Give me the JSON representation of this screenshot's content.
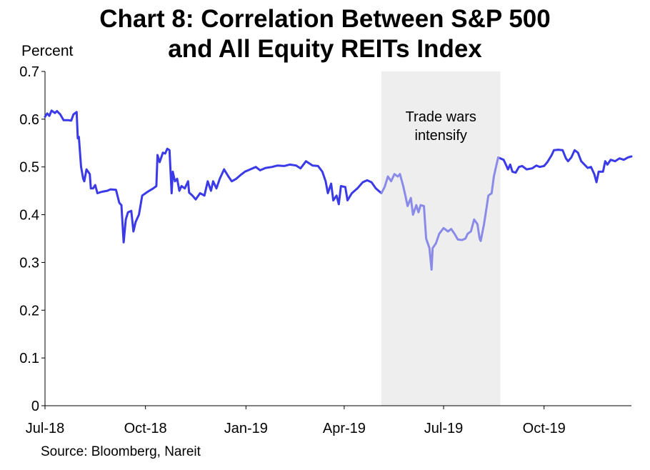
{
  "title_line1": "Chart 8: Correlation Between S&P 500",
  "title_line2": "and All Equity REITs Index",
  "source": "Source: Bloomberg, Nareit",
  "chart_data": {
    "type": "line",
    "title": "Chart 8: Correlation Between S&P 500 and All Equity REITs Index",
    "ylabel": "Percent",
    "xlabel": "",
    "ylim": [
      0,
      0.7
    ],
    "yticks": [
      "0",
      "0.1",
      "0.2",
      "0.3",
      "0.4",
      "0.5",
      "0.6",
      "0.7"
    ],
    "xticks": [
      {
        "label": "Jul-18",
        "date": "2018-07-01"
      },
      {
        "label": "Oct-18",
        "date": "2018-10-01"
      },
      {
        "label": "Jan-19",
        "date": "2019-01-01"
      },
      {
        "label": "Apr-19",
        "date": "2019-04-01"
      },
      {
        "label": "Jul-19",
        "date": "2019-07-01"
      },
      {
        "label": "Oct-19",
        "date": "2019-10-01"
      }
    ],
    "xlim": [
      "2018-07-01",
      "2019-12-20"
    ],
    "shaded_region": {
      "start": "2019-05-05",
      "end": "2019-08-22",
      "color": "#eeeeee"
    },
    "annotation": {
      "lines": [
        "Trade wars",
        "intensify"
      ]
    },
    "grid": false,
    "colors": {
      "line": "#3a3ae8",
      "line_highlight": "#8a8ae8"
    },
    "series": [
      {
        "name": "",
        "points": [
          [
            "2018-07-01",
            0.605
          ],
          [
            "2018-07-03",
            0.612
          ],
          [
            "2018-07-05",
            0.607
          ],
          [
            "2018-07-07",
            0.618
          ],
          [
            "2018-07-10",
            0.613
          ],
          [
            "2018-07-12",
            0.617
          ],
          [
            "2018-07-15",
            0.61
          ],
          [
            "2018-07-18",
            0.598
          ],
          [
            "2018-07-22",
            0.598
          ],
          [
            "2018-07-25",
            0.597
          ],
          [
            "2018-07-27",
            0.61
          ],
          [
            "2018-07-30",
            0.615
          ],
          [
            "2018-07-31",
            0.56
          ],
          [
            "2018-08-01",
            0.563
          ],
          [
            "2018-08-03",
            0.5
          ],
          [
            "2018-08-05",
            0.475
          ],
          [
            "2018-08-06",
            0.47
          ],
          [
            "2018-08-08",
            0.495
          ],
          [
            "2018-08-11",
            0.485
          ],
          [
            "2018-08-12",
            0.455
          ],
          [
            "2018-08-14",
            0.455
          ],
          [
            "2018-08-16",
            0.462
          ],
          [
            "2018-08-18",
            0.445
          ],
          [
            "2018-08-22",
            0.448
          ],
          [
            "2018-08-27",
            0.45
          ],
          [
            "2018-08-30",
            0.453
          ],
          [
            "2018-09-04",
            0.452
          ],
          [
            "2018-09-07",
            0.425
          ],
          [
            "2018-09-09",
            0.42
          ],
          [
            "2018-09-11",
            0.342
          ],
          [
            "2018-09-13",
            0.39
          ],
          [
            "2018-09-15",
            0.405
          ],
          [
            "2018-09-18",
            0.408
          ],
          [
            "2018-09-20",
            0.365
          ],
          [
            "2018-09-22",
            0.385
          ],
          [
            "2018-09-25",
            0.4
          ],
          [
            "2018-09-28",
            0.44
          ],
          [
            "2018-10-03",
            0.448
          ],
          [
            "2018-10-08",
            0.455
          ],
          [
            "2018-10-11",
            0.46
          ],
          [
            "2018-10-12",
            0.525
          ],
          [
            "2018-10-14",
            0.51
          ],
          [
            "2018-10-17",
            0.53
          ],
          [
            "2018-10-19",
            0.528
          ],
          [
            "2018-10-21",
            0.538
          ],
          [
            "2018-10-23",
            0.535
          ],
          [
            "2018-10-25",
            0.445
          ],
          [
            "2018-10-26",
            0.49
          ],
          [
            "2018-10-28",
            0.47
          ],
          [
            "2018-10-30",
            0.475
          ],
          [
            "2018-11-01",
            0.45
          ],
          [
            "2018-11-03",
            0.46
          ],
          [
            "2018-11-06",
            0.455
          ],
          [
            "2018-11-09",
            0.47
          ],
          [
            "2018-11-10",
            0.446
          ],
          [
            "2018-11-13",
            0.44
          ],
          [
            "2018-11-16",
            0.432
          ],
          [
            "2018-11-20",
            0.445
          ],
          [
            "2018-11-24",
            0.44
          ],
          [
            "2018-11-27",
            0.47
          ],
          [
            "2018-11-30",
            0.45
          ],
          [
            "2018-12-02",
            0.47
          ],
          [
            "2018-12-05",
            0.455
          ],
          [
            "2018-12-08",
            0.475
          ],
          [
            "2018-12-12",
            0.495
          ],
          [
            "2018-12-16",
            0.48
          ],
          [
            "2018-12-19",
            0.47
          ],
          [
            "2018-12-23",
            0.475
          ],
          [
            "2018-12-27",
            0.483
          ],
          [
            "2018-12-31",
            0.49
          ],
          [
            "2019-01-05",
            0.495
          ],
          [
            "2019-01-10",
            0.5
          ],
          [
            "2019-01-14",
            0.493
          ],
          [
            "2019-01-19",
            0.498
          ],
          [
            "2019-01-25",
            0.5
          ],
          [
            "2019-01-30",
            0.503
          ],
          [
            "2019-02-05",
            0.502
          ],
          [
            "2019-02-10",
            0.505
          ],
          [
            "2019-02-16",
            0.503
          ],
          [
            "2019-02-20",
            0.497
          ],
          [
            "2019-02-25",
            0.512
          ],
          [
            "2019-03-03",
            0.503
          ],
          [
            "2019-03-08",
            0.502
          ],
          [
            "2019-03-12",
            0.49
          ],
          [
            "2019-03-15",
            0.47
          ],
          [
            "2019-03-17",
            0.445
          ],
          [
            "2019-03-20",
            0.465
          ],
          [
            "2019-03-22",
            0.43
          ],
          [
            "2019-03-25",
            0.44
          ],
          [
            "2019-03-27",
            0.422
          ],
          [
            "2019-03-29",
            0.46
          ],
          [
            "2019-04-02",
            0.458
          ],
          [
            "2019-04-04",
            0.43
          ],
          [
            "2019-04-08",
            0.445
          ],
          [
            "2019-04-13",
            0.455
          ],
          [
            "2019-04-18",
            0.468
          ],
          [
            "2019-04-22",
            0.472
          ],
          [
            "2019-04-26",
            0.468
          ],
          [
            "2019-04-30",
            0.455
          ],
          [
            "2019-05-05",
            0.445
          ]
        ]
      },
      {
        "name": "",
        "segment": "shaded",
        "points": [
          [
            "2019-05-05",
            0.445
          ],
          [
            "2019-05-08",
            0.458
          ],
          [
            "2019-05-11",
            0.48
          ],
          [
            "2019-05-14",
            0.47
          ],
          [
            "2019-05-17",
            0.485
          ],
          [
            "2019-05-20",
            0.48
          ],
          [
            "2019-05-22",
            0.485
          ],
          [
            "2019-05-25",
            0.46
          ],
          [
            "2019-05-27",
            0.44
          ],
          [
            "2019-05-29",
            0.418
          ],
          [
            "2019-06-01",
            0.435
          ],
          [
            "2019-06-03",
            0.4
          ],
          [
            "2019-06-06",
            0.42
          ],
          [
            "2019-06-08",
            0.405
          ],
          [
            "2019-06-10",
            0.42
          ],
          [
            "2019-06-13",
            0.418
          ],
          [
            "2019-06-15",
            0.35
          ],
          [
            "2019-06-18",
            0.33
          ],
          [
            "2019-06-20",
            0.285
          ],
          [
            "2019-06-21",
            0.33
          ],
          [
            "2019-06-24",
            0.34
          ],
          [
            "2019-06-27",
            0.36
          ],
          [
            "2019-07-01",
            0.372
          ],
          [
            "2019-07-05",
            0.365
          ],
          [
            "2019-07-08",
            0.37
          ],
          [
            "2019-07-11",
            0.36
          ],
          [
            "2019-07-14",
            0.348
          ],
          [
            "2019-07-18",
            0.347
          ],
          [
            "2019-07-21",
            0.35
          ],
          [
            "2019-07-23",
            0.36
          ],
          [
            "2019-07-26",
            0.365
          ],
          [
            "2019-07-29",
            0.39
          ],
          [
            "2019-08-01",
            0.38
          ],
          [
            "2019-08-03",
            0.35
          ],
          [
            "2019-08-04",
            0.345
          ],
          [
            "2019-08-07",
            0.38
          ],
          [
            "2019-08-09",
            0.41
          ],
          [
            "2019-08-11",
            0.44
          ],
          [
            "2019-08-14",
            0.445
          ],
          [
            "2019-08-16",
            0.48
          ],
          [
            "2019-08-18",
            0.5
          ],
          [
            "2019-08-20",
            0.52
          ],
          [
            "2019-08-22",
            0.518
          ]
        ]
      },
      {
        "name": "",
        "points": [
          [
            "2019-08-22",
            0.518
          ],
          [
            "2019-08-25",
            0.515
          ],
          [
            "2019-08-27",
            0.505
          ],
          [
            "2019-08-29",
            0.495
          ],
          [
            "2019-08-31",
            0.505
          ],
          [
            "2019-09-02",
            0.49
          ],
          [
            "2019-09-05",
            0.488
          ],
          [
            "2019-09-08",
            0.5
          ],
          [
            "2019-09-11",
            0.502
          ],
          [
            "2019-09-15",
            0.495
          ],
          [
            "2019-09-20",
            0.497
          ],
          [
            "2019-09-24",
            0.503
          ],
          [
            "2019-09-27",
            0.5
          ],
          [
            "2019-10-01",
            0.502
          ],
          [
            "2019-10-04",
            0.51
          ],
          [
            "2019-10-08",
            0.525
          ],
          [
            "2019-10-10",
            0.535
          ],
          [
            "2019-10-14",
            0.536
          ],
          [
            "2019-10-18",
            0.535
          ],
          [
            "2019-10-21",
            0.518
          ],
          [
            "2019-10-23",
            0.512
          ],
          [
            "2019-10-26",
            0.52
          ],
          [
            "2019-10-29",
            0.535
          ],
          [
            "2019-11-01",
            0.53
          ],
          [
            "2019-11-04",
            0.512
          ],
          [
            "2019-11-07",
            0.505
          ],
          [
            "2019-11-10",
            0.498
          ],
          [
            "2019-11-13",
            0.5
          ],
          [
            "2019-11-16",
            0.485
          ],
          [
            "2019-11-18",
            0.468
          ],
          [
            "2019-11-20",
            0.49
          ],
          [
            "2019-11-24",
            0.49
          ],
          [
            "2019-11-26",
            0.512
          ],
          [
            "2019-11-28",
            0.505
          ],
          [
            "2019-12-01",
            0.515
          ],
          [
            "2019-12-05",
            0.512
          ],
          [
            "2019-12-09",
            0.518
          ],
          [
            "2019-12-13",
            0.515
          ],
          [
            "2019-12-17",
            0.52
          ],
          [
            "2019-12-20",
            0.522
          ]
        ]
      }
    ]
  }
}
